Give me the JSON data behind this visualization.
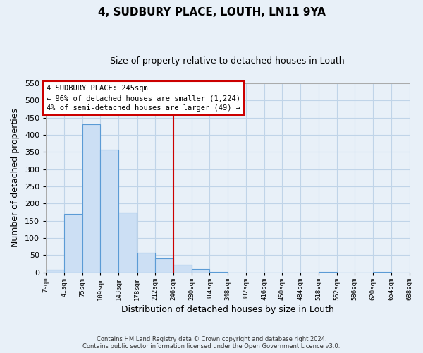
{
  "title": "4, SUDBURY PLACE, LOUTH, LN11 9YA",
  "subtitle": "Size of property relative to detached houses in Louth",
  "xlabel": "Distribution of detached houses by size in Louth",
  "ylabel": "Number of detached properties",
  "bin_edges": [
    7,
    41,
    75,
    109,
    143,
    178,
    212,
    246,
    280,
    314,
    348,
    382,
    416,
    450,
    484,
    518,
    552,
    586,
    620,
    654,
    688
  ],
  "bin_labels": [
    "7sqm",
    "41sqm",
    "75sqm",
    "109sqm",
    "143sqm",
    "178sqm",
    "212sqm",
    "246sqm",
    "280sqm",
    "314sqm",
    "348sqm",
    "382sqm",
    "416sqm",
    "450sqm",
    "484sqm",
    "518sqm",
    "552sqm",
    "586sqm",
    "620sqm",
    "654sqm",
    "688sqm"
  ],
  "counts": [
    8,
    170,
    430,
    356,
    175,
    57,
    40,
    22,
    10,
    2,
    0,
    0,
    0,
    0,
    0,
    1,
    0,
    0,
    1,
    0
  ],
  "bar_facecolor": "#ccdff4",
  "bar_edgecolor": "#5b9bd5",
  "grid_color": "#c0d4e8",
  "bg_color": "#e8f0f8",
  "vline_x": 246,
  "vline_color": "#cc0000",
  "box_text_line1": "4 SUDBURY PLACE: 245sqm",
  "box_text_line2": "← 96% of detached houses are smaller (1,224)",
  "box_text_line3": "4% of semi-detached houses are larger (49) →",
  "box_facecolor": "white",
  "box_edgecolor": "#cc0000",
  "footer_line1": "Contains HM Land Registry data © Crown copyright and database right 2024.",
  "footer_line2": "Contains public sector information licensed under the Open Government Licence v3.0.",
  "ylim": [
    0,
    550
  ],
  "yticks": [
    0,
    50,
    100,
    150,
    200,
    250,
    300,
    350,
    400,
    450,
    500,
    550
  ],
  "title_fontsize": 11,
  "subtitle_fontsize": 9,
  "xlabel_fontsize": 9,
  "ylabel_fontsize": 9
}
